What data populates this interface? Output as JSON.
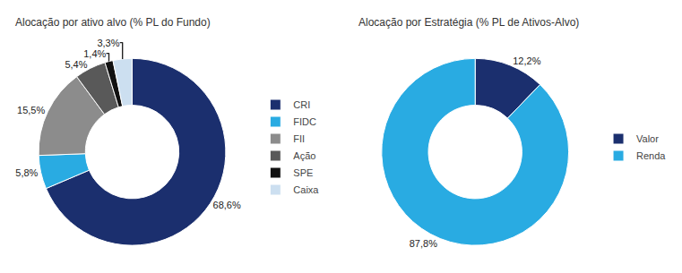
{
  "chart_data": [
    {
      "type": "pie",
      "title": "Alocação por ativo alvo (% PL do Fundo)",
      "categories": [
        "CRI",
        "FIDC",
        "FII",
        "Ação",
        "SPE",
        "Caixa"
      ],
      "values": [
        68.6,
        5.8,
        15.5,
        5.4,
        1.4,
        3.3
      ],
      "value_labels": [
        "68,6%",
        "5,8%",
        "15,5%",
        "5,4%",
        "1,4%",
        "3,3%"
      ],
      "colors": [
        "#1b2f6e",
        "#29abe2",
        "#8c8c8c",
        "#595959",
        "#111111",
        "#ccdff0"
      ],
      "data_labels": true,
      "legend": "right"
    },
    {
      "type": "pie",
      "title": "Alocação por Estratégia (% PL de Ativos-Alvo)",
      "categories": [
        "Valor",
        "Renda"
      ],
      "values": [
        12.2,
        87.8
      ],
      "value_labels": [
        "12,2%",
        "87,8%"
      ],
      "colors": [
        "#1b2f6e",
        "#29abe2"
      ],
      "data_labels": true,
      "legend": "right"
    }
  ]
}
